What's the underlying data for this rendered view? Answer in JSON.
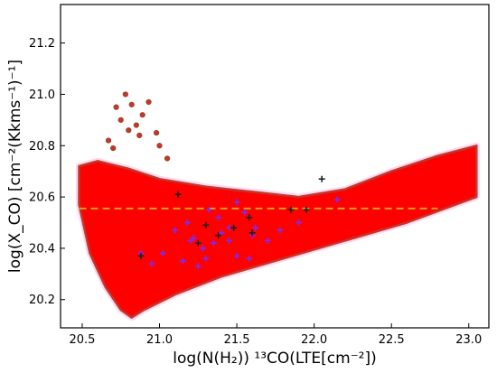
{
  "chart_data": {
    "type": "scatter",
    "xlabel": "log(N(H₂)) ¹³CO(LTE[cm⁻²])",
    "ylabel": "log(X_CO) [cm⁻²(Kkms⁻¹)⁻¹]",
    "xlim": [
      20.36,
      23.13
    ],
    "ylim": [
      20.09,
      21.35
    ],
    "xticks": [
      "20.5",
      "21.0",
      "21.5",
      "22.0",
      "22.5",
      "23.0"
    ],
    "yticks": [
      "20.2",
      "20.4",
      "20.6",
      "20.8",
      "21.0",
      "21.2"
    ],
    "grid": false,
    "reference_line": {
      "y": 20.555,
      "x_range": [
        20.48,
        22.8
      ],
      "style": "dashed",
      "color": "#d4a017"
    },
    "envelope": {
      "description_points_upper": [
        [
          20.48,
          20.72
        ],
        [
          20.6,
          20.74
        ],
        [
          20.8,
          20.71
        ],
        [
          21.0,
          20.67
        ],
        [
          21.3,
          20.64
        ],
        [
          21.6,
          20.62
        ],
        [
          21.9,
          20.6
        ],
        [
          22.2,
          20.63
        ],
        [
          22.5,
          20.7
        ],
        [
          22.8,
          20.76
        ],
        [
          23.05,
          20.8
        ]
      ],
      "description_points_lower": [
        [
          20.48,
          20.57
        ],
        [
          20.55,
          20.38
        ],
        [
          20.65,
          20.25
        ],
        [
          20.75,
          20.16
        ],
        [
          20.82,
          20.13
        ],
        [
          20.9,
          20.16
        ],
        [
          21.1,
          20.22
        ],
        [
          21.4,
          20.29
        ],
        [
          21.8,
          20.36
        ],
        [
          22.2,
          20.43
        ],
        [
          22.6,
          20.5
        ],
        [
          23.05,
          20.6
        ]
      ]
    },
    "series": [
      {
        "marker": "circle",
        "color": "#ff0000",
        "outliers": [
          [
            20.78,
            21.0
          ],
          [
            20.82,
            20.96
          ],
          [
            20.85,
            20.88
          ],
          [
            20.87,
            20.84
          ],
          [
            20.7,
            20.79
          ],
          [
            20.67,
            20.82
          ],
          [
            20.75,
            20.9
          ],
          [
            20.98,
            20.85
          ],
          [
            21.0,
            20.8
          ],
          [
            21.05,
            20.75
          ],
          [
            20.89,
            20.92
          ],
          [
            20.93,
            20.97
          ],
          [
            20.8,
            20.86
          ],
          [
            20.72,
            20.95
          ]
        ]
      },
      {
        "marker": "plus",
        "color": "#7b2cf5",
        "points": [
          [
            20.88,
            20.38
          ],
          [
            21.02,
            20.38
          ],
          [
            21.1,
            20.47
          ],
          [
            21.2,
            20.43
          ],
          [
            21.28,
            20.4
          ],
          [
            21.35,
            20.42
          ],
          [
            21.4,
            20.46
          ],
          [
            21.45,
            20.43
          ],
          [
            21.5,
            20.58
          ],
          [
            21.55,
            20.54
          ],
          [
            21.6,
            20.45
          ],
          [
            21.3,
            20.36
          ],
          [
            21.25,
            20.33
          ],
          [
            21.15,
            20.35
          ],
          [
            21.5,
            20.37
          ],
          [
            21.58,
            20.36
          ],
          [
            21.7,
            20.43
          ],
          [
            21.62,
            20.48
          ],
          [
            21.18,
            20.5
          ],
          [
            21.38,
            20.52
          ],
          [
            21.32,
            20.55
          ],
          [
            21.45,
            20.48
          ],
          [
            21.78,
            20.47
          ],
          [
            21.9,
            20.5
          ],
          [
            22.15,
            20.59
          ],
          [
            20.95,
            20.34
          ],
          [
            21.22,
            20.44
          ]
        ]
      },
      {
        "marker": "plus",
        "color": "#222222",
        "points": [
          [
            20.88,
            20.37
          ],
          [
            21.12,
            20.61
          ],
          [
            21.3,
            20.49
          ],
          [
            21.48,
            20.48
          ],
          [
            21.6,
            20.46
          ],
          [
            21.25,
            20.42
          ],
          [
            21.85,
            20.55
          ],
          [
            21.95,
            20.55
          ],
          [
            22.05,
            20.67
          ],
          [
            21.38,
            20.45
          ],
          [
            21.58,
            20.52
          ]
        ]
      }
    ]
  }
}
